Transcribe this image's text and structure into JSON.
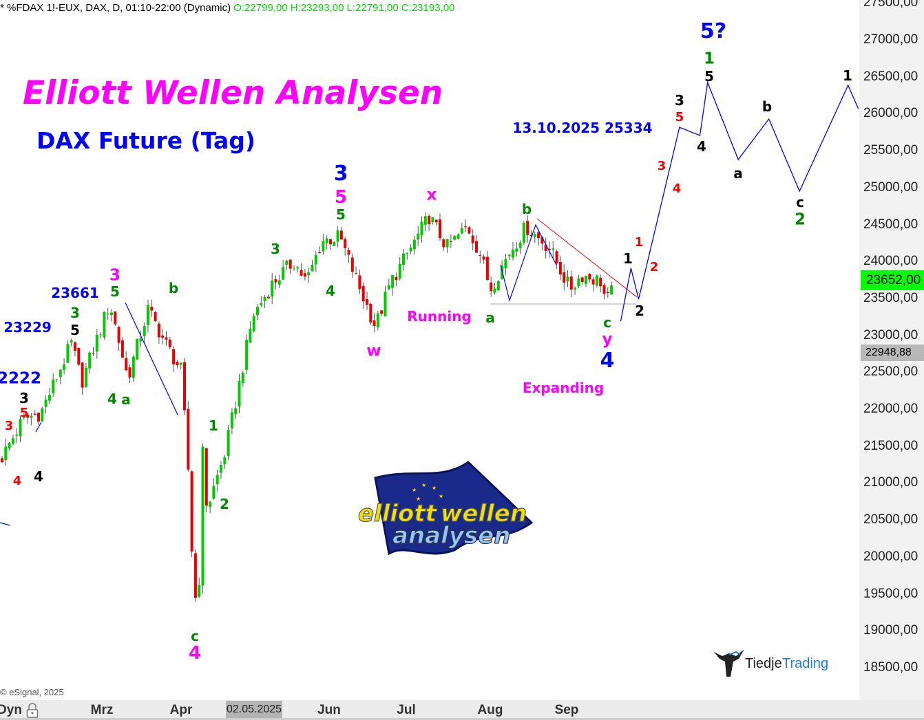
{
  "header": {
    "symbol_text": "* %FDAX 1!-EUX, DAX, D, 01:10-22:00 (Dynamic)",
    "ohlc": "O:22799,00 H:23293,00 L:22791,00 C:23193,00"
  },
  "title": "Elliott Wellen Analysen",
  "subtitle": "DAX Future (Tag)",
  "current_price": "23652,00",
  "marker_price": "22948,88",
  "copyright": "© eSignal, 2025",
  "x_axis": {
    "mode": "Dyn",
    "selected_date": "02.05.2025",
    "months": [
      "Mrz",
      "Apr",
      "Jun",
      "Jul",
      "Aug",
      "Sep"
    ]
  },
  "y_axis": {
    "ticks": [
      "27500,00",
      "27000,00",
      "26500,00",
      "26000,00",
      "25500,00",
      "25000,00",
      "24500,00",
      "24000,00",
      "23500,00",
      "23000,00",
      "22500,00",
      "22000,00",
      "21500,00",
      "21000,00",
      "20500,00",
      "20000,00",
      "19500,00",
      "19000,00",
      "18500,00"
    ]
  },
  "labels": [
    {
      "text": "3",
      "color": "#ff0000"
    },
    {
      "text": "5",
      "color": "#ff0000"
    },
    {
      "text": "3",
      "color": "#000000"
    },
    {
      "text": "4",
      "color": "#ff0000"
    },
    {
      "text": "4",
      "color": "#000000"
    },
    {
      "text": "2222",
      "color": "#0000ff"
    },
    {
      "text": "23229",
      "color": "#0000ff"
    },
    {
      "text": "5",
      "color": "#000000"
    },
    {
      "text": "3",
      "color": "#008800"
    },
    {
      "text": "23661",
      "color": "#0000ff"
    },
    {
      "text": "3",
      "color": "#ff00ff"
    },
    {
      "text": "5",
      "color": "#008800"
    },
    {
      "text": "b",
      "color": "#008800"
    },
    {
      "text": "4",
      "color": "#008800"
    },
    {
      "text": "a",
      "color": "#008800"
    },
    {
      "text": "1",
      "color": "#008800"
    },
    {
      "text": "2",
      "color": "#008800"
    },
    {
      "text": "c",
      "color": "#008800"
    },
    {
      "text": "4",
      "color": "#ff00ff"
    },
    {
      "text": "3",
      "color": "#008800"
    },
    {
      "text": "4",
      "color": "#008800"
    },
    {
      "text": "3",
      "color": "#0000ff"
    },
    {
      "text": "5",
      "color": "#ff00ff"
    },
    {
      "text": "5",
      "color": "#008800"
    },
    {
      "text": "x",
      "color": "#ff00ff"
    },
    {
      "text": "w",
      "color": "#ff00ff"
    },
    {
      "text": "Running",
      "color": "#ff00ff"
    },
    {
      "text": "a",
      "color": "#008800"
    },
    {
      "text": "b",
      "color": "#008800"
    },
    {
      "text": "c",
      "color": "#008800"
    },
    {
      "text": "y",
      "color": "#ff00ff"
    },
    {
      "text": "4",
      "color": "#0000ff"
    },
    {
      "text": "Expanding",
      "color": "#ff00ff"
    },
    {
      "text": "1",
      "color": "#000000"
    },
    {
      "text": "1",
      "color": "#ff0000"
    },
    {
      "text": "2",
      "color": "#ff0000"
    },
    {
      "text": "2",
      "color": "#000000"
    },
    {
      "text": "3",
      "color": "#ff0000"
    },
    {
      "text": "4",
      "color": "#ff0000"
    },
    {
      "text": "3",
      "color": "#000000"
    },
    {
      "text": "5",
      "color": "#ff0000"
    },
    {
      "text": "4",
      "color": "#000000"
    },
    {
      "text": "1",
      "color": "#008800"
    },
    {
      "text": "5",
      "color": "#000000"
    },
    {
      "text": "5?",
      "color": "#0000ff"
    },
    {
      "text": "a",
      "color": "#000000"
    },
    {
      "text": "b",
      "color": "#000000"
    },
    {
      "text": "c",
      "color": "#000000"
    },
    {
      "text": "2",
      "color": "#008800"
    },
    {
      "text": "1",
      "color": "#000000"
    },
    {
      "text": "13.10.2025 25334",
      "color": "#0000ff"
    }
  ],
  "logos": {
    "center": "elliott wellen analysen",
    "bottom_right": "TiedjeTrading"
  },
  "chart_data": {
    "type": "candlestick",
    "ylim": [
      18500,
      27500
    ],
    "up_color": "#00cc00",
    "down_color": "#ee0000",
    "approx_close_path": [
      [
        "2025-01-22",
        21300
      ],
      [
        "2025-01-31",
        21860
      ],
      [
        "2025-02-07",
        21950
      ],
      [
        "2025-02-19",
        22890
      ],
      [
        "2025-02-23",
        22370
      ],
      [
        "2025-03-06",
        23440
      ],
      [
        "2025-03-13",
        22420
      ],
      [
        "2025-03-21",
        23350
      ],
      [
        "2025-03-28",
        22880
      ],
      [
        "2025-04-03",
        22510
      ],
      [
        "2025-04-06",
        21020
      ],
      [
        "2025-04-08",
        19350
      ],
      [
        "2025-04-10",
        19720
      ],
      [
        "2025-04-11",
        21580
      ],
      [
        "2025-04-13",
        20650
      ],
      [
        "2025-04-20",
        21400
      ],
      [
        "2025-04-24",
        22050
      ],
      [
        "2025-05-01",
        23260
      ],
      [
        "2025-05-09",
        23720
      ],
      [
        "2025-05-17",
        24000
      ],
      [
        "2025-05-22",
        23720
      ],
      [
        "2025-05-28",
        24280
      ],
      [
        "2025-06-04",
        24330
      ],
      [
        "2025-06-13",
        23530
      ],
      [
        "2025-06-18",
        23120
      ],
      [
        "2025-06-24",
        23720
      ],
      [
        "2025-07-02",
        24190
      ],
      [
        "2025-07-09",
        24610
      ],
      [
        "2025-07-16",
        24190
      ],
      [
        "2025-07-24",
        24470
      ],
      [
        "2025-07-29",
        24100
      ],
      [
        "2025-08-02",
        23630
      ],
      [
        "2025-08-09",
        24100
      ],
      [
        "2025-08-16",
        24470
      ],
      [
        "2025-08-25",
        24190
      ],
      [
        "2025-09-02",
        23630
      ],
      [
        "2025-09-07",
        23820
      ],
      [
        "2025-09-15",
        23720
      ],
      [
        "2025-09-16",
        23400
      ],
      [
        "2025-09-18",
        23580
      ]
    ],
    "forecast_path": [
      [
        "2025-09-22",
        23192
      ],
      [
        "2025-09-26",
        23909
      ],
      [
        "2025-09-29",
        23490
      ],
      [
        "2025-10-15",
        25817
      ],
      [
        "2025-10-23",
        25706
      ],
      [
        "2025-10-26",
        26423
      ],
      [
        "2025-11-07",
        25380
      ],
      [
        "2025-11-19",
        25929
      ],
      [
        "2025-12-01",
        24952
      ],
      [
        "2025-12-20",
        26385
      ],
      [
        "2025-12-24",
        26069
      ]
    ],
    "forecast_color": "#0000ff"
  }
}
